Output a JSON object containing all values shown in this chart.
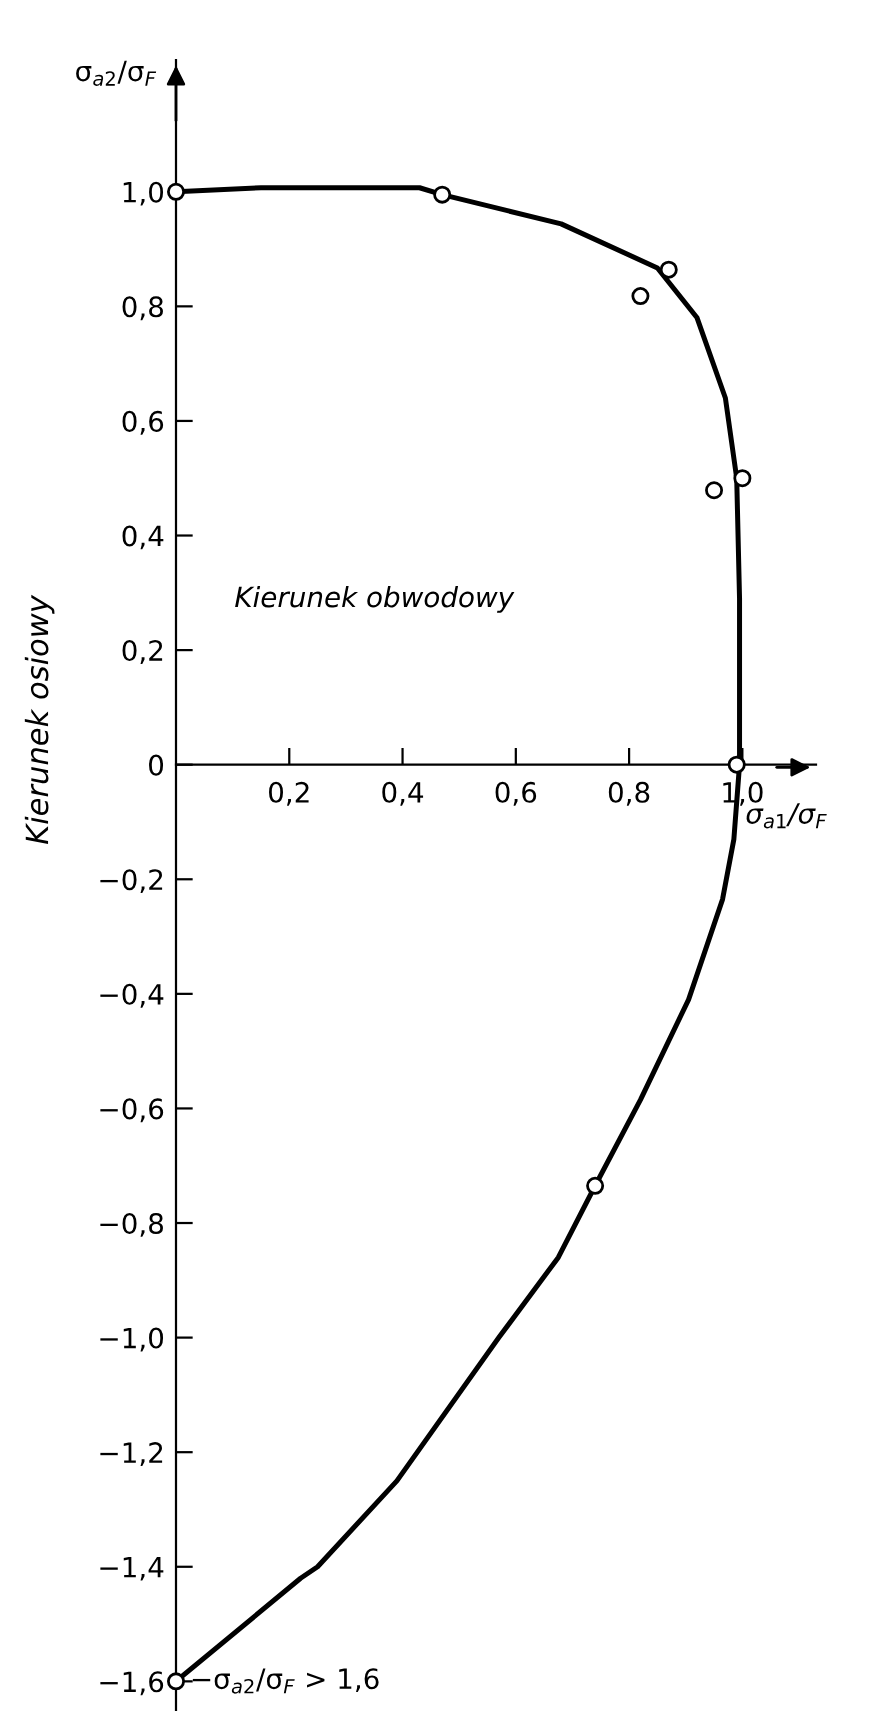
{
  "chart_data": {
    "type": "line",
    "xlabel": "σ$_{a1}$/σ$_{F}$",
    "ylabel": "Kierunek osiowy",
    "annotations": [
      "σ$_{a2}$/σ$_{F}$",
      "Kierunek obwodowy",
      {
        "text": "−σ$_{a2}$/σ$_{F}$ > 1,6",
        "x": 0,
        "y": -1.6
      }
    ],
    "xlim": [
      0,
      1.13
    ],
    "ylim": [
      -1.65,
      1.23
    ],
    "xticks": [
      {
        "value": 0.2,
        "label": "0,2"
      },
      {
        "value": 0.4,
        "label": "0,4"
      },
      {
        "value": 0.6,
        "label": "0,6"
      },
      {
        "value": 0.8,
        "label": "0,8"
      },
      {
        "value": 1.0,
        "label": "1,0"
      }
    ],
    "yticks": [
      {
        "value": -1.6,
        "label": "−1,6"
      },
      {
        "value": -1.4,
        "label": "−1,4"
      },
      {
        "value": -1.2,
        "label": "−1,2"
      },
      {
        "value": -1.0,
        "label": "−1,0"
      },
      {
        "value": -0.8,
        "label": "−0,8"
      },
      {
        "value": -0.6,
        "label": "−0,6"
      },
      {
        "value": -0.4,
        "label": "−0,4"
      },
      {
        "value": -0.2,
        "label": "−0,2"
      },
      0,
      {
        "value": 0.2,
        "label": "0,2"
      },
      {
        "value": 0.4,
        "label": "0,4"
      },
      {
        "value": 0.6,
        "label": "0,6"
      },
      {
        "value": 0.8,
        "label": "0,8"
      },
      {
        "value": 1.0,
        "label": "1,0"
      }
    ],
    "grid": false,
    "legend": false,
    "series": [
      {
        "color": "#000000",
        "marker": "none",
        "line_style": "solid",
        "x": [
          0,
          0.15,
          0.43,
          0.47,
          0.68,
          0.85,
          0.92,
          0.97,
          0.99,
          0.995,
          0.995,
          0.985,
          0.965,
          0.905,
          0.82,
          0.74,
          0.675,
          0.57,
          0.39,
          0.25,
          0.22,
          0
        ],
        "values": [
          1.0,
          1.007,
          1.007,
          0.995,
          0.944,
          0.867,
          0.78,
          0.64,
          0.5,
          0.29,
          0,
          -0.13,
          -0.235,
          -0.41,
          -0.585,
          -0.735,
          -0.86,
          -1.0,
          -1.25,
          -1.4,
          -1.42,
          -1.6
        ]
      },
      {
        "type": "scatter",
        "color": "#000000",
        "marker": "circle",
        "x": [
          0,
          0.47,
          0.82,
          0.87,
          0.95,
          1.0,
          0.99,
          0.74,
          0
        ],
        "values": [
          1.0,
          0.995,
          0.818,
          0.864,
          0.479,
          0.5,
          0,
          -0.735,
          -1.6
        ]
      }
    ]
  }
}
